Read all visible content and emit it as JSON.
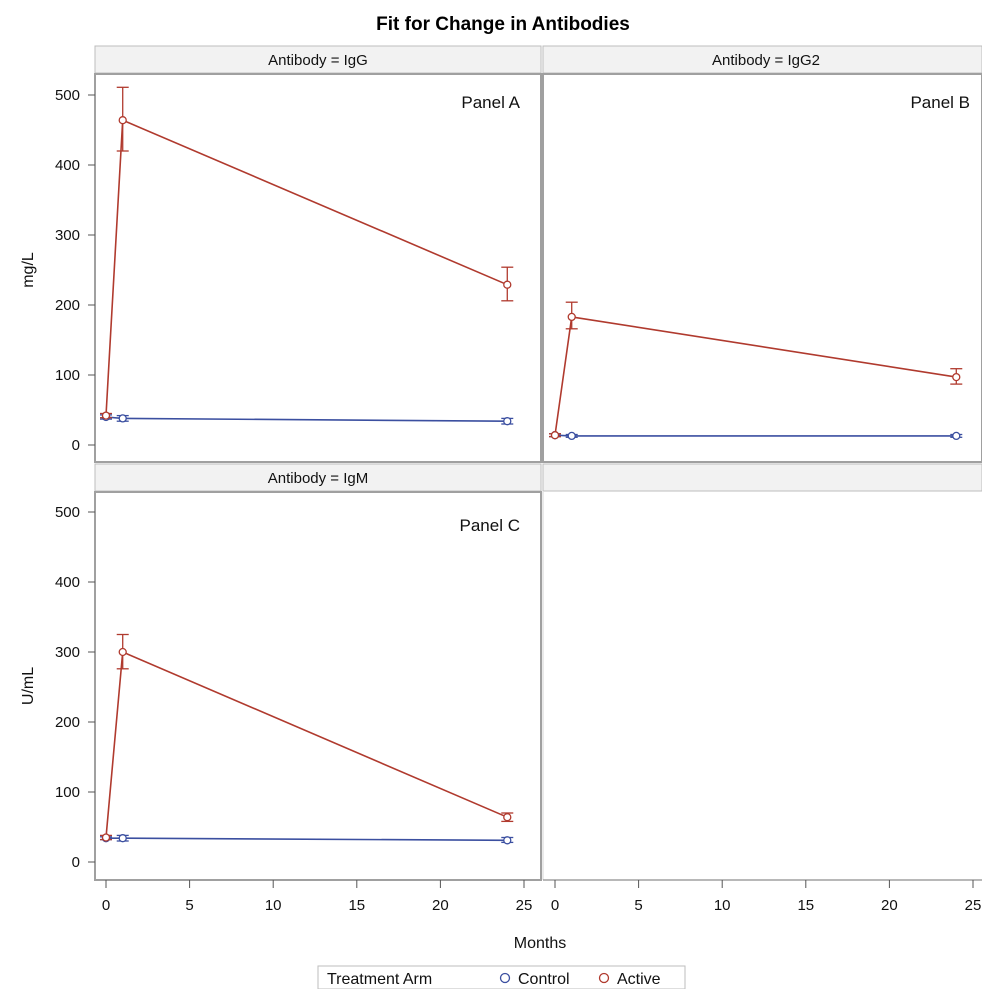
{
  "chart_data": {
    "type": "line",
    "title": "Fit for Change in Antibodies",
    "xlabel": "Months",
    "xlim": [
      0,
      25
    ],
    "x_ticks": [
      "0",
      "5",
      "10",
      "15",
      "20",
      "25"
    ],
    "ylim": [
      0,
      500
    ],
    "y_ticks": [
      "0",
      "100",
      "200",
      "300",
      "400",
      "500"
    ],
    "grid": false,
    "legend": {
      "title": "Treatment Arm",
      "placement": "bottom-center",
      "entries": [
        {
          "label": "Control",
          "color": "#3b4fa0"
        },
        {
          "label": "Active",
          "color": "#b03a2e"
        }
      ]
    },
    "panels": [
      {
        "header": "Antibody = IgG",
        "tag": "Panel A",
        "ylabel": "mg/L",
        "series": [
          {
            "name": "Control",
            "color": "#3b4fa0",
            "x": [
              0,
              1,
              24
            ],
            "y": [
              40,
              38,
              34
            ],
            "err_low": [
              37,
              34,
              30
            ],
            "err_high": [
              43,
              42,
              38
            ]
          },
          {
            "name": "Active",
            "color": "#b03a2e",
            "x": [
              0,
              1,
              24
            ],
            "y": [
              42,
              464,
              229
            ],
            "err_low": [
              39,
              420,
              206
            ],
            "err_high": [
              45,
              511,
              254
            ]
          }
        ]
      },
      {
        "header": "Antibody = IgG2",
        "tag": "Panel B",
        "ylabel": "",
        "series": [
          {
            "name": "Control",
            "color": "#3b4fa0",
            "x": [
              0,
              1,
              24
            ],
            "y": [
              14,
              13,
              13
            ],
            "err_low": [
              12,
              11,
              11
            ],
            "err_high": [
              16,
              15,
              15
            ]
          },
          {
            "name": "Active",
            "color": "#b03a2e",
            "x": [
              0,
              1,
              24
            ],
            "y": [
              14,
              183,
              97
            ],
            "err_low": [
              12,
              166,
              87
            ],
            "err_high": [
              16,
              204,
              109
            ]
          }
        ]
      },
      {
        "header": "Antibody = IgM",
        "tag": "Panel C",
        "ylabel": "U/mL",
        "series": [
          {
            "name": "Control",
            "color": "#3b4fa0",
            "x": [
              0,
              1,
              24
            ],
            "y": [
              34,
              34,
              31
            ],
            "err_low": [
              32,
              30,
              28
            ],
            "err_high": [
              36,
              38,
              35
            ]
          },
          {
            "name": "Active",
            "color": "#b03a2e",
            "x": [
              0,
              1,
              24
            ],
            "y": [
              35,
              300,
              64
            ],
            "err_low": [
              32,
              276,
              58
            ],
            "err_high": [
              38,
              325,
              70
            ]
          }
        ]
      }
    ]
  }
}
